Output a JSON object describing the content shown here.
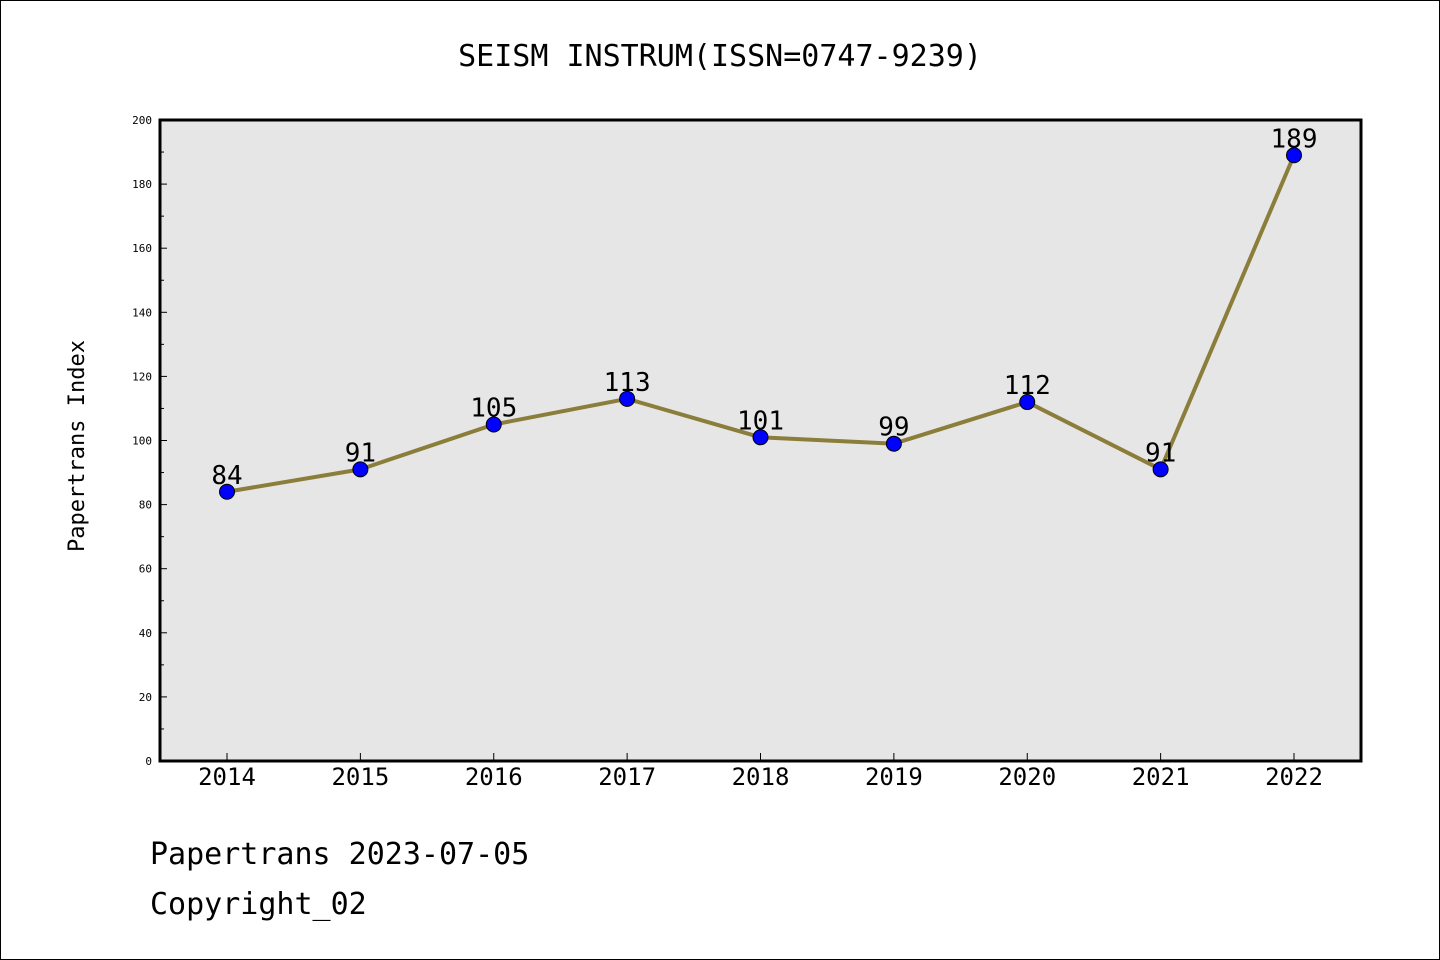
{
  "chart_data": {
    "type": "line",
    "title": "SEISM INSTRUM(ISSN=0747-9239)",
    "xlabel": "",
    "ylabel": "Papertrans Index",
    "categories": [
      "2014",
      "2015",
      "2016",
      "2017",
      "2018",
      "2019",
      "2020",
      "2021",
      "2022"
    ],
    "series": [
      {
        "values": [
          84,
          91,
          105,
          113,
          101,
          99,
          112,
          91,
          189
        ]
      }
    ],
    "ylim": [
      0,
      200
    ],
    "yticks": [
      "0",
      "20",
      "40",
      "60",
      "80",
      "100",
      "120",
      "140",
      "160",
      "180",
      "200"
    ],
    "grid": false,
    "line_color": "#8b7d3a",
    "marker_color": "#0000ff",
    "plot_background": "#e6e6e6"
  },
  "footer": {
    "line1": "Papertrans 2023-07-05",
    "line2": "Copyright_02"
  }
}
